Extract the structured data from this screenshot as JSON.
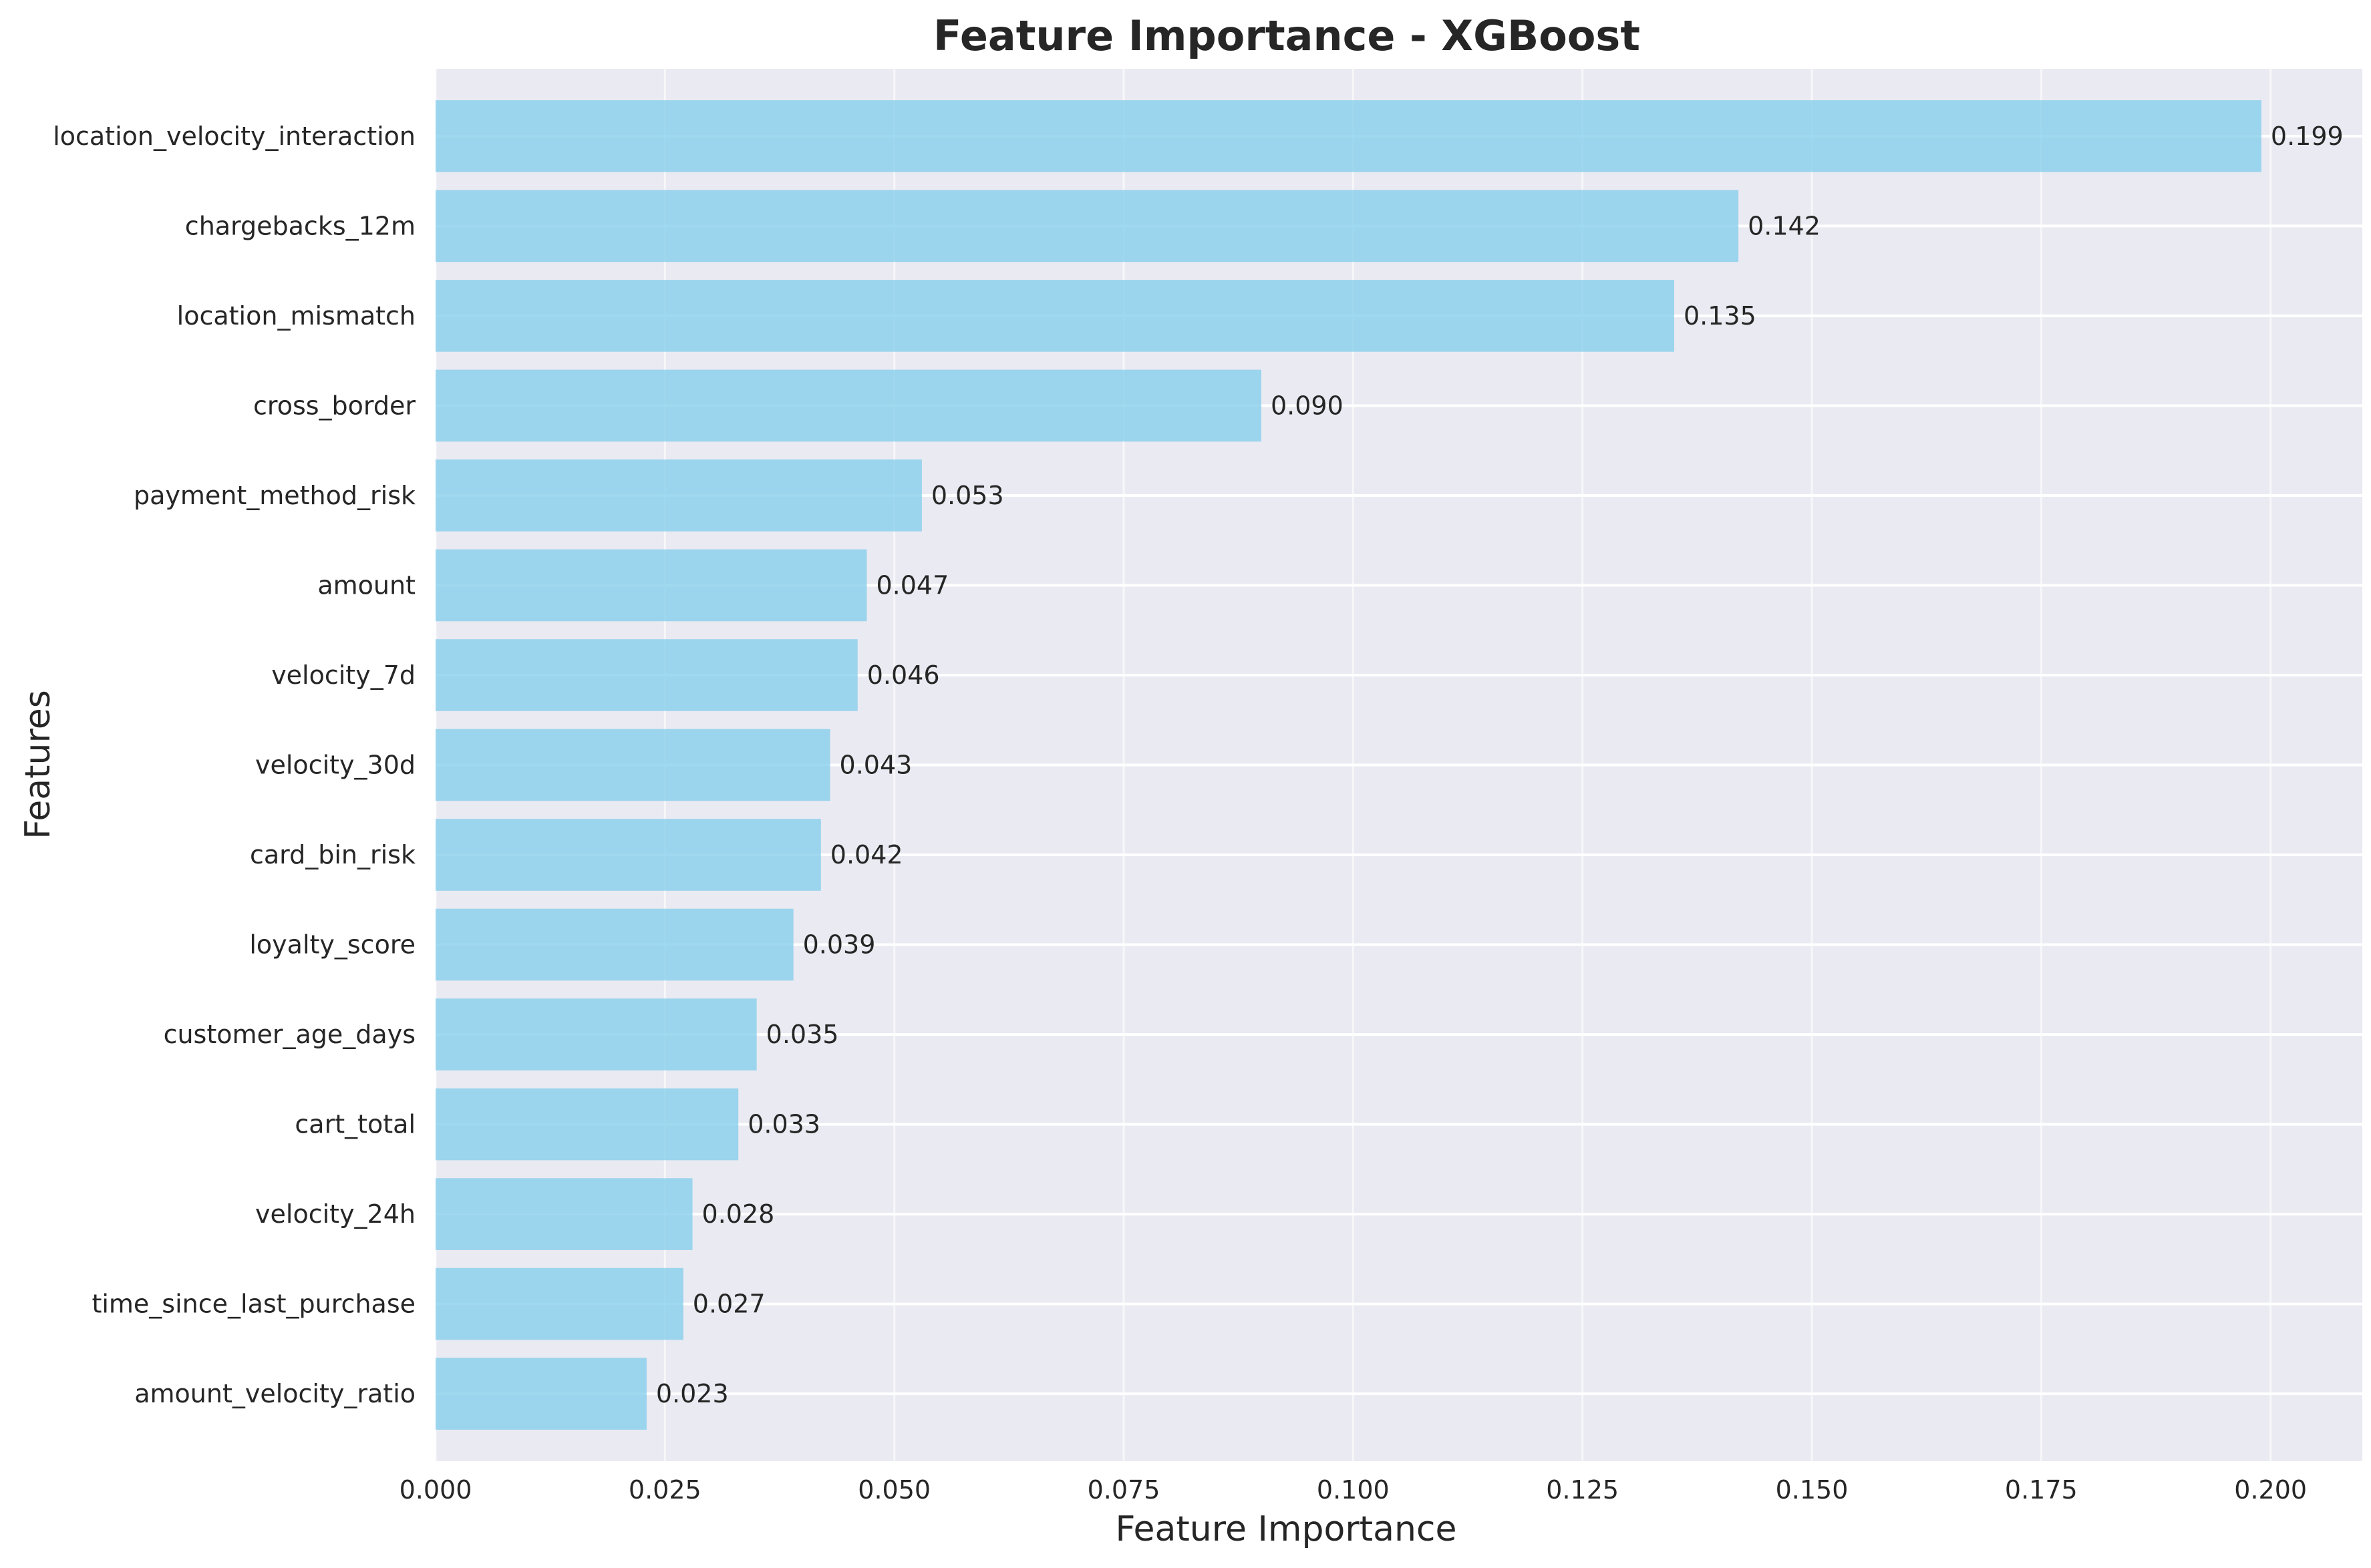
{
  "chart_data": {
    "type": "bar",
    "orientation": "horizontal",
    "title": "Feature Importance - XGBoost",
    "xlabel": "Feature Importance",
    "ylabel": "Features",
    "xlim": [
      0,
      0.21
    ],
    "x_ticks": [
      0.0,
      0.025,
      0.05,
      0.075,
      0.1,
      0.125,
      0.15,
      0.175,
      0.2
    ],
    "x_tick_labels": [
      "0.000",
      "0.025",
      "0.050",
      "0.075",
      "0.100",
      "0.125",
      "0.150",
      "0.175",
      "0.200"
    ],
    "grid": true,
    "categories": [
      "location_velocity_interaction",
      "chargebacks_12m",
      "location_mismatch",
      "cross_border",
      "payment_method_risk",
      "amount",
      "velocity_7d",
      "velocity_30d",
      "card_bin_risk",
      "loyalty_score",
      "customer_age_days",
      "cart_total",
      "velocity_24h",
      "time_since_last_purchase",
      "amount_velocity_ratio"
    ],
    "values": [
      0.199,
      0.142,
      0.135,
      0.09,
      0.053,
      0.047,
      0.046,
      0.043,
      0.042,
      0.039,
      0.035,
      0.033,
      0.028,
      0.027,
      0.023
    ],
    "value_labels": [
      "0.199",
      "0.142",
      "0.135",
      "0.090",
      "0.053",
      "0.047",
      "0.046",
      "0.043",
      "0.042",
      "0.039",
      "0.035",
      "0.033",
      "0.028",
      "0.027",
      "0.023"
    ],
    "colors": {
      "bar": "#87CEEB",
      "background": "#EAEAF2",
      "grid": "#FFFFFF"
    }
  }
}
